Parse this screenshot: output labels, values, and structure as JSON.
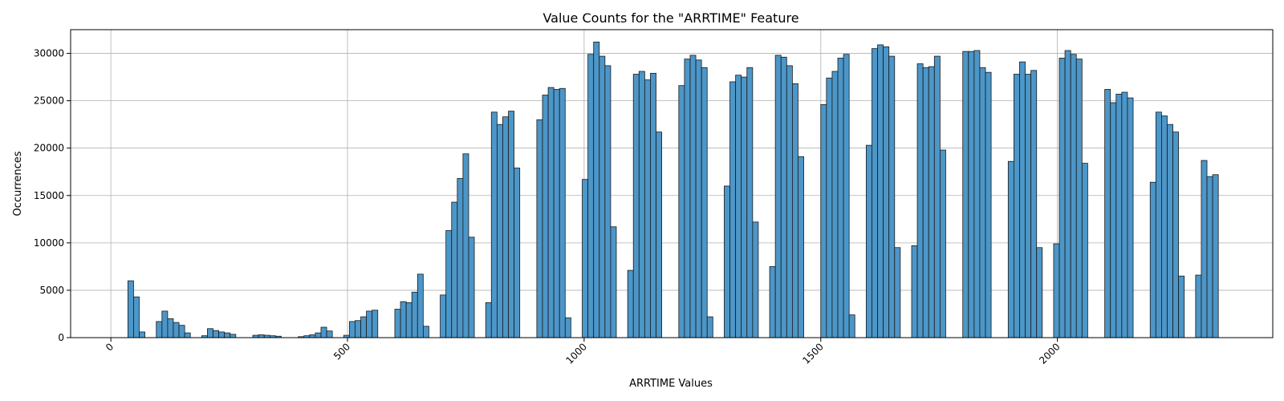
{
  "chart_data": {
    "type": "bar",
    "title": "Value Counts for the \"ARRTIME\" Feature",
    "xlabel": "ARRTIME Values",
    "ylabel": "Occurrences",
    "xlim": [
      -85,
      2455
    ],
    "ylim": [
      0,
      32500
    ],
    "x_ticks": [
      0,
      500,
      1000,
      1500,
      2000
    ],
    "y_ticks": [
      0,
      5000,
      10000,
      15000,
      20000,
      25000,
      30000
    ],
    "grid": true,
    "bar_color": "#4c96c8",
    "bin_width": 12,
    "bins": [
      {
        "x": 36,
        "value": 6000
      },
      {
        "x": 48,
        "value": 4300
      },
      {
        "x": 60,
        "value": 600
      },
      {
        "x": 96,
        "value": 1700
      },
      {
        "x": 108,
        "value": 2800
      },
      {
        "x": 120,
        "value": 2000
      },
      {
        "x": 132,
        "value": 1600
      },
      {
        "x": 144,
        "value": 1300
      },
      {
        "x": 156,
        "value": 500
      },
      {
        "x": 192,
        "value": 200
      },
      {
        "x": 204,
        "value": 950
      },
      {
        "x": 216,
        "value": 750
      },
      {
        "x": 228,
        "value": 600
      },
      {
        "x": 240,
        "value": 500
      },
      {
        "x": 252,
        "value": 350
      },
      {
        "x": 300,
        "value": 250
      },
      {
        "x": 312,
        "value": 300
      },
      {
        "x": 324,
        "value": 250
      },
      {
        "x": 336,
        "value": 200
      },
      {
        "x": 348,
        "value": 150
      },
      {
        "x": 396,
        "value": 100
      },
      {
        "x": 408,
        "value": 200
      },
      {
        "x": 420,
        "value": 300
      },
      {
        "x": 432,
        "value": 500
      },
      {
        "x": 444,
        "value": 1100
      },
      {
        "x": 456,
        "value": 700
      },
      {
        "x": 492,
        "value": 250
      },
      {
        "x": 504,
        "value": 1700
      },
      {
        "x": 516,
        "value": 1800
      },
      {
        "x": 528,
        "value": 2200
      },
      {
        "x": 540,
        "value": 2800
      },
      {
        "x": 552,
        "value": 2900
      },
      {
        "x": 600,
        "value": 3000
      },
      {
        "x": 612,
        "value": 3800
      },
      {
        "x": 624,
        "value": 3700
      },
      {
        "x": 636,
        "value": 4800
      },
      {
        "x": 648,
        "value": 6700
      },
      {
        "x": 660,
        "value": 1200
      },
      {
        "x": 696,
        "value": 4500
      },
      {
        "x": 708,
        "value": 11300
      },
      {
        "x": 720,
        "value": 14300
      },
      {
        "x": 732,
        "value": 16800
      },
      {
        "x": 744,
        "value": 19400
      },
      {
        "x": 756,
        "value": 10600
      },
      {
        "x": 792,
        "value": 3700
      },
      {
        "x": 804,
        "value": 23800
      },
      {
        "x": 816,
        "value": 22500
      },
      {
        "x": 828,
        "value": 23300
      },
      {
        "x": 840,
        "value": 23900
      },
      {
        "x": 852,
        "value": 17900
      },
      {
        "x": 900,
        "value": 23000
      },
      {
        "x": 912,
        "value": 25600
      },
      {
        "x": 924,
        "value": 26400
      },
      {
        "x": 936,
        "value": 26200
      },
      {
        "x": 948,
        "value": 26300
      },
      {
        "x": 960,
        "value": 2100
      },
      {
        "x": 996,
        "value": 16700
      },
      {
        "x": 1008,
        "value": 29900
      },
      {
        "x": 1020,
        "value": 31200
      },
      {
        "x": 1032,
        "value": 29700
      },
      {
        "x": 1044,
        "value": 28700
      },
      {
        "x": 1056,
        "value": 11700
      },
      {
        "x": 1092,
        "value": 7100
      },
      {
        "x": 1104,
        "value": 27800
      },
      {
        "x": 1116,
        "value": 28100
      },
      {
        "x": 1128,
        "value": 27200
      },
      {
        "x": 1140,
        "value": 27900
      },
      {
        "x": 1152,
        "value": 21700
      },
      {
        "x": 1200,
        "value": 26600
      },
      {
        "x": 1212,
        "value": 29400
      },
      {
        "x": 1224,
        "value": 29800
      },
      {
        "x": 1236,
        "value": 29300
      },
      {
        "x": 1248,
        "value": 28500
      },
      {
        "x": 1260,
        "value": 2200
      },
      {
        "x": 1296,
        "value": 16000
      },
      {
        "x": 1308,
        "value": 27000
      },
      {
        "x": 1320,
        "value": 27700
      },
      {
        "x": 1332,
        "value": 27500
      },
      {
        "x": 1344,
        "value": 28500
      },
      {
        "x": 1356,
        "value": 12200
      },
      {
        "x": 1392,
        "value": 7500
      },
      {
        "x": 1404,
        "value": 29800
      },
      {
        "x": 1416,
        "value": 29600
      },
      {
        "x": 1428,
        "value": 28700
      },
      {
        "x": 1440,
        "value": 26800
      },
      {
        "x": 1452,
        "value": 19100
      },
      {
        "x": 1500,
        "value": 24600
      },
      {
        "x": 1512,
        "value": 27400
      },
      {
        "x": 1524,
        "value": 28100
      },
      {
        "x": 1536,
        "value": 29500
      },
      {
        "x": 1548,
        "value": 29900
      },
      {
        "x": 1560,
        "value": 2400
      },
      {
        "x": 1596,
        "value": 20300
      },
      {
        "x": 1608,
        "value": 30500
      },
      {
        "x": 1620,
        "value": 30900
      },
      {
        "x": 1632,
        "value": 30700
      },
      {
        "x": 1644,
        "value": 29700
      },
      {
        "x": 1656,
        "value": 9500
      },
      {
        "x": 1692,
        "value": 9700
      },
      {
        "x": 1704,
        "value": 28900
      },
      {
        "x": 1716,
        "value": 28500
      },
      {
        "x": 1728,
        "value": 28600
      },
      {
        "x": 1740,
        "value": 29700
      },
      {
        "x": 1752,
        "value": 19800
      },
      {
        "x": 1800,
        "value": 30200
      },
      {
        "x": 1812,
        "value": 30200
      },
      {
        "x": 1824,
        "value": 30300
      },
      {
        "x": 1836,
        "value": 28500
      },
      {
        "x": 1848,
        "value": 28000
      },
      {
        "x": 1896,
        "value": 18600
      },
      {
        "x": 1908,
        "value": 27800
      },
      {
        "x": 1920,
        "value": 29100
      },
      {
        "x": 1932,
        "value": 27800
      },
      {
        "x": 1944,
        "value": 28200
      },
      {
        "x": 1956,
        "value": 9500
      },
      {
        "x": 1992,
        "value": 9900
      },
      {
        "x": 2004,
        "value": 29500
      },
      {
        "x": 2016,
        "value": 30300
      },
      {
        "x": 2028,
        "value": 29900
      },
      {
        "x": 2040,
        "value": 29400
      },
      {
        "x": 2052,
        "value": 18400
      },
      {
        "x": 2100,
        "value": 26200
      },
      {
        "x": 2112,
        "value": 24800
      },
      {
        "x": 2124,
        "value": 25700
      },
      {
        "x": 2136,
        "value": 25900
      },
      {
        "x": 2148,
        "value": 25300
      },
      {
        "x": 2196,
        "value": 16400
      },
      {
        "x": 2208,
        "value": 23800
      },
      {
        "x": 2220,
        "value": 23400
      },
      {
        "x": 2232,
        "value": 22500
      },
      {
        "x": 2244,
        "value": 21700
      },
      {
        "x": 2256,
        "value": 6500
      },
      {
        "x": 2292,
        "value": 6600
      },
      {
        "x": 2304,
        "value": 18700
      },
      {
        "x": 2316,
        "value": 17000
      },
      {
        "x": 2328,
        "value": 17200
      }
    ]
  }
}
